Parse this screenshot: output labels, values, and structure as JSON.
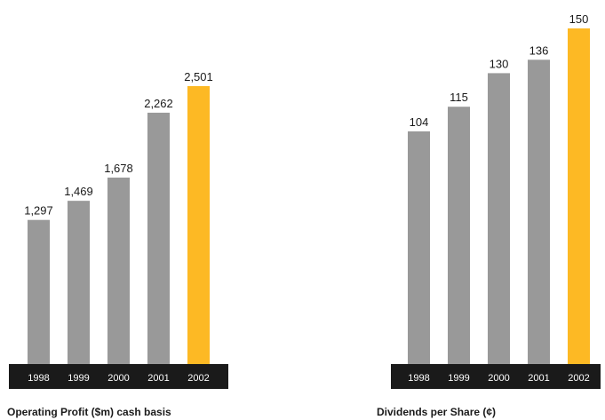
{
  "colors": {
    "bar_default": "#999999",
    "bar_highlight": "#FDB924",
    "year_band": "#1a1a1a",
    "year_text": "#ffffff",
    "value_text": "#1a1a1a"
  },
  "chart_data": [
    {
      "type": "bar",
      "title": "Operating Profit ($m) cash basis",
      "categories": [
        "1998",
        "1999",
        "2000",
        "2001",
        "2002"
      ],
      "values": [
        1297,
        1469,
        1678,
        2262,
        2501
      ],
      "value_labels": [
        "1,297",
        "1,469",
        "1,678",
        "2,262",
        "2,501"
      ],
      "highlight_index": 4,
      "xlabel": "",
      "ylabel": "",
      "ylim": [
        0,
        2501
      ],
      "grid": false,
      "legend": "none"
    },
    {
      "type": "bar",
      "title": "Dividends per Share (¢)",
      "categories": [
        "1998",
        "1999",
        "2000",
        "2001",
        "2002"
      ],
      "values": [
        104,
        115,
        130,
        136,
        150
      ],
      "value_labels": [
        "104",
        "115",
        "130",
        "136",
        "150"
      ],
      "highlight_index": 4,
      "xlabel": "",
      "ylabel": "",
      "ylim": [
        0,
        150
      ],
      "grid": false,
      "legend": "none"
    }
  ]
}
